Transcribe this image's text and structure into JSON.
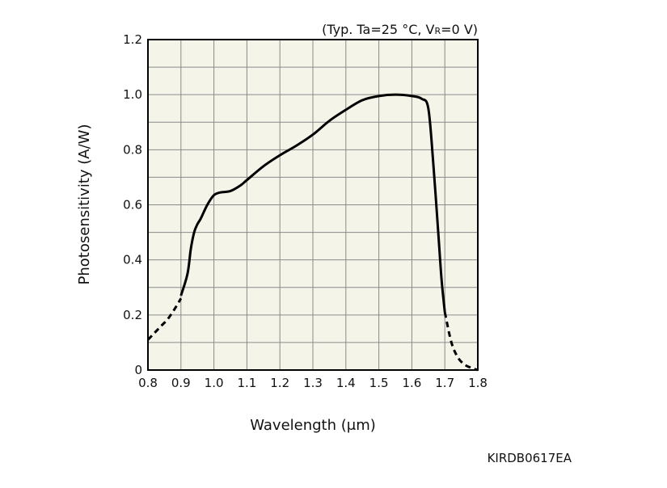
{
  "chart_data": {
    "type": "line",
    "title": "",
    "condition_note": {
      "prefix": "(Typ. Ta=25 °C, V",
      "subscript": "R",
      "suffix": "=0 V)"
    },
    "xlabel": "Wavelength (μm)",
    "ylabel": "Photosensitivity (A/W)",
    "xlim": [
      0.8,
      1.8
    ],
    "ylim": [
      0,
      1.2
    ],
    "x_ticks": [
      0.8,
      0.9,
      1.0,
      1.1,
      1.2,
      1.3,
      1.4,
      1.5,
      1.6,
      1.7,
      1.8
    ],
    "x_tick_labels": [
      "0.8",
      "0.9",
      "1.0",
      "1.1",
      "1.2",
      "1.3",
      "1.4",
      "1.5",
      "1.6",
      "1.7",
      "1.8"
    ],
    "y_ticks": [
      0,
      0.2,
      0.4,
      0.6,
      0.8,
      1.0,
      1.2
    ],
    "y_tick_labels": [
      "0",
      "0.2",
      "0.4",
      "0.6",
      "0.8",
      "1.0",
      "1.2"
    ],
    "x_minor_step": 0.1,
    "y_minor_step": 0.1,
    "grid": true,
    "series": [
      {
        "style": "dashed",
        "x": [
          0.8,
          0.82,
          0.84,
          0.86,
          0.88,
          0.9
        ],
        "y": [
          0.11,
          0.135,
          0.16,
          0.185,
          0.22,
          0.26
        ]
      },
      {
        "style": "solid",
        "x": [
          0.9,
          0.92,
          0.93,
          0.94,
          0.95,
          0.96,
          0.98,
          1.0,
          1.02,
          1.05,
          1.08,
          1.1,
          1.15,
          1.2,
          1.25,
          1.3,
          1.35,
          1.4,
          1.45,
          1.5,
          1.55,
          1.6,
          1.63,
          1.65,
          1.665,
          1.68,
          1.69,
          1.7
        ],
        "y": [
          0.27,
          0.35,
          0.44,
          0.5,
          0.53,
          0.55,
          0.6,
          0.635,
          0.645,
          0.65,
          0.67,
          0.69,
          0.74,
          0.78,
          0.815,
          0.855,
          0.905,
          0.945,
          0.98,
          0.995,
          1.0,
          0.995,
          0.985,
          0.95,
          0.75,
          0.5,
          0.33,
          0.21
        ]
      },
      {
        "style": "dashed",
        "x": [
          1.7,
          1.72,
          1.74,
          1.76,
          1.78,
          1.8
        ],
        "y": [
          0.21,
          0.1,
          0.045,
          0.02,
          0.008,
          0.0
        ]
      }
    ],
    "figure_code": "KIRDB0617EA"
  }
}
